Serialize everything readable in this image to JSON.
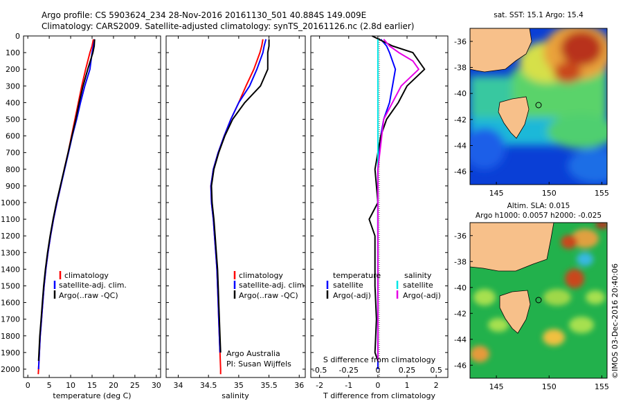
{
  "header": {
    "line1": "Argo profile: CS 5903624_234 28-Nov-2016 20161130_501 40.884S 149.009E",
    "line2": "Climatology: CARS2009. Satellite-adjusted climatology: synTS_20161126.nc (2.8d earlier)"
  },
  "colors": {
    "climatology": "#ff0000",
    "satellite": "#0000ff",
    "argo": "#000000",
    "salinity_satellite": "#00e6e6",
    "salinity_argo": "#e600e6",
    "land": "#f7c08a",
    "sla_base": "#22b14c"
  },
  "side_label": "©IMOS 03-Dec-2016 20:40:06",
  "chart_data": [
    {
      "type": "line",
      "id": "temperature",
      "xlabel": "temperature (deg C)",
      "ylabel": "",
      "xlim": [
        -1,
        31
      ],
      "ylim": [
        2050,
        0
      ],
      "x_ticks": [
        0,
        5,
        10,
        15,
        20,
        25,
        30
      ],
      "x_tick_labels": [
        "0",
        "5",
        "10",
        "15",
        "20",
        "25",
        "30"
      ],
      "y_ticks": [
        0,
        100,
        200,
        300,
        400,
        500,
        600,
        700,
        800,
        900,
        1000,
        1100,
        1200,
        1300,
        1400,
        1500,
        1600,
        1700,
        1800,
        1900,
        2000
      ],
      "y_tick_labels": [
        "0",
        "100",
        "200",
        "300",
        "400",
        "500",
        "600",
        "700",
        "800",
        "900",
        "1000",
        "1100",
        "1200",
        "1300",
        "1400",
        "1500",
        "1600",
        "1700",
        "1800",
        "1900",
        "2000"
      ],
      "legend": [
        "climatology",
        "satellite-adj. clim.",
        "Argo(..raw -QC)"
      ],
      "series": [
        {
          "name": "climatology",
          "color": "#ff0000",
          "points": [
            [
              15.3,
              20
            ],
            [
              15.0,
              60
            ],
            [
              14.5,
              100
            ],
            [
              13.5,
              200
            ],
            [
              12.6,
              300
            ],
            [
              11.8,
              400
            ],
            [
              11.0,
              500
            ],
            [
              10.2,
              600
            ],
            [
              9.4,
              700
            ],
            [
              8.5,
              800
            ],
            [
              7.7,
              900
            ],
            [
              6.8,
              1000
            ],
            [
              6.0,
              1100
            ],
            [
              5.3,
              1200
            ],
            [
              4.7,
              1300
            ],
            [
              4.2,
              1400
            ],
            [
              3.8,
              1500
            ],
            [
              3.5,
              1600
            ],
            [
              3.2,
              1700
            ],
            [
              2.9,
              1800
            ],
            [
              2.7,
              1900
            ],
            [
              2.5,
              2000
            ],
            [
              2.45,
              2030
            ]
          ]
        },
        {
          "name": "satellite-adj. clim.",
          "color": "#0000ff",
          "points": [
            [
              15.6,
              20
            ],
            [
              15.3,
              60
            ],
            [
              15.0,
              100
            ],
            [
              14.5,
              200
            ],
            [
              13.3,
              300
            ],
            [
              12.3,
              400
            ],
            [
              11.4,
              500
            ],
            [
              10.4,
              600
            ],
            [
              9.5,
              700
            ],
            [
              8.6,
              800
            ],
            [
              7.7,
              900
            ],
            [
              6.8,
              1000
            ],
            [
              6.0,
              1100
            ],
            [
              5.3,
              1200
            ],
            [
              4.7,
              1300
            ],
            [
              4.2,
              1400
            ],
            [
              3.8,
              1500
            ],
            [
              3.5,
              1600
            ],
            [
              3.2,
              1700
            ],
            [
              2.9,
              1800
            ],
            [
              2.7,
              1900
            ],
            [
              2.5,
              2000
            ]
          ]
        },
        {
          "name": "Argo(..raw -QC)",
          "color": "#000000",
          "points": [
            [
              15.6,
              20
            ],
            [
              15.5,
              60
            ],
            [
              15.2,
              100
            ],
            [
              14.0,
              200
            ],
            [
              12.9,
              300
            ],
            [
              12.0,
              400
            ],
            [
              11.2,
              500
            ],
            [
              10.3,
              600
            ],
            [
              9.4,
              700
            ],
            [
              8.5,
              800
            ],
            [
              7.6,
              900
            ],
            [
              6.7,
              1000
            ],
            [
              5.9,
              1100
            ],
            [
              5.2,
              1200
            ],
            [
              4.6,
              1300
            ],
            [
              4.1,
              1400
            ],
            [
              3.7,
              1500
            ],
            [
              3.4,
              1600
            ],
            [
              3.1,
              1700
            ],
            [
              2.8,
              1800
            ],
            [
              2.6,
              1900
            ],
            [
              2.5,
              1950
            ]
          ]
        }
      ]
    },
    {
      "type": "line",
      "id": "salinity",
      "xlabel": "salinity",
      "ylabel": "",
      "xlim": [
        33.8,
        36.1
      ],
      "ylim": [
        2050,
        0
      ],
      "x_ticks": [
        34,
        34.5,
        35,
        35.5,
        36
      ],
      "x_tick_labels": [
        "34",
        "34.5",
        "35",
        "35.5",
        "36"
      ],
      "legend": [
        "climatology",
        "satellite-adj. clim.",
        "Argo(..raw -QC)"
      ],
      "annotations": [
        "Argo Australia",
        "PI: Susan Wijffels"
      ],
      "series": [
        {
          "name": "climatology",
          "color": "#ff0000",
          "points": [
            [
              35.4,
              20
            ],
            [
              35.38,
              60
            ],
            [
              35.35,
              100
            ],
            [
              35.25,
              200
            ],
            [
              35.12,
              300
            ],
            [
              35.0,
              400
            ],
            [
              34.87,
              500
            ],
            [
              34.76,
              600
            ],
            [
              34.66,
              700
            ],
            [
              34.58,
              800
            ],
            [
              34.54,
              900
            ],
            [
              34.55,
              1000
            ],
            [
              34.58,
              1100
            ],
            [
              34.6,
              1200
            ],
            [
              34.62,
              1300
            ],
            [
              34.64,
              1400
            ],
            [
              34.65,
              1500
            ],
            [
              34.66,
              1600
            ],
            [
              34.67,
              1700
            ],
            [
              34.68,
              1800
            ],
            [
              34.69,
              1900
            ],
            [
              34.7,
              2000
            ],
            [
              34.7,
              2030
            ]
          ]
        },
        {
          "name": "satellite-adj. clim.",
          "color": "#0000ff",
          "points": [
            [
              35.45,
              20
            ],
            [
              35.42,
              60
            ],
            [
              35.4,
              100
            ],
            [
              35.3,
              200
            ],
            [
              35.18,
              300
            ],
            [
              35.0,
              400
            ],
            [
              34.87,
              500
            ],
            [
              34.76,
              600
            ],
            [
              34.66,
              700
            ],
            [
              34.58,
              800
            ],
            [
              34.54,
              900
            ],
            [
              34.55,
              1000
            ],
            [
              34.58,
              1100
            ],
            [
              34.6,
              1200
            ],
            [
              34.62,
              1300
            ],
            [
              34.64,
              1400
            ],
            [
              34.65,
              1500
            ],
            [
              34.66,
              1600
            ],
            [
              34.67,
              1700
            ],
            [
              34.68,
              1800
            ],
            [
              34.69,
              1900
            ]
          ]
        },
        {
          "name": "Argo(..raw -QC)",
          "color": "#000000",
          "points": [
            [
              35.5,
              20
            ],
            [
              35.5,
              60
            ],
            [
              35.48,
              100
            ],
            [
              35.48,
              200
            ],
            [
              35.36,
              300
            ],
            [
              35.1,
              400
            ],
            [
              34.9,
              500
            ],
            [
              34.77,
              600
            ],
            [
              34.67,
              700
            ],
            [
              34.59,
              800
            ],
            [
              34.55,
              900
            ],
            [
              34.56,
              1000
            ],
            [
              34.59,
              1100
            ],
            [
              34.61,
              1200
            ],
            [
              34.63,
              1300
            ],
            [
              34.65,
              1400
            ],
            [
              34.66,
              1500
            ],
            [
              34.67,
              1600
            ],
            [
              34.68,
              1700
            ],
            [
              34.69,
              1800
            ],
            [
              34.7,
              1900
            ]
          ]
        }
      ]
    },
    {
      "type": "line",
      "id": "differences",
      "xlabel": "T difference from climatology",
      "xlabel_top": "S difference from climatology",
      "xlim": [
        -2.3,
        2.4
      ],
      "ylim": [
        2050,
        0
      ],
      "x_ticks": [
        -2,
        -1,
        0,
        1,
        2
      ],
      "x_tick_labels": [
        "-2",
        "-1",
        "0",
        "1",
        "2"
      ],
      "s_ticks": [
        -0.5,
        -0.25,
        0,
        0.25,
        0.5
      ],
      "s_tick_labels": [
        "-0.5",
        "-0.25",
        "0",
        "0.25",
        "0.5"
      ],
      "legend_left_title": "temperature",
      "legend_left": [
        "satellite",
        "Argo(-adj)"
      ],
      "legend_right_title": "salinity",
      "legend_right": [
        "satellite",
        "Argo(-adj)"
      ],
      "series": [
        {
          "name": "T satellite",
          "color": "#0000ff",
          "points": [
            [
              0.1,
              20
            ],
            [
              0.3,
              60
            ],
            [
              0.4,
              100
            ],
            [
              0.6,
              200
            ],
            [
              0.5,
              300
            ],
            [
              0.4,
              400
            ],
            [
              0.2,
              500
            ],
            [
              0.1,
              600
            ],
            [
              0.05,
              700
            ],
            [
              0.0,
              800
            ],
            [
              0.0,
              900
            ],
            [
              0.0,
              1000
            ],
            [
              0.0,
              1500
            ],
            [
              0.0,
              2000
            ]
          ]
        },
        {
          "name": "T Argo(-adj)",
          "color": "#000000",
          "points": [
            [
              -0.2,
              0
            ],
            [
              0.5,
              60
            ],
            [
              1.2,
              100
            ],
            [
              1.6,
              200
            ],
            [
              1.0,
              300
            ],
            [
              0.7,
              400
            ],
            [
              0.3,
              500
            ],
            [
              0.1,
              600
            ],
            [
              -0.1,
              800
            ],
            [
              0.0,
              1000
            ],
            [
              -0.3,
              1100
            ],
            [
              -0.1,
              1200
            ],
            [
              -0.1,
              1500
            ],
            [
              -0.05,
              1700
            ],
            [
              -0.1,
              1900
            ],
            [
              0.0,
              1950
            ]
          ]
        },
        {
          "name": "S satellite",
          "color": "#00e6e6",
          "points": [
            [
              0.0,
              20
            ],
            [
              0.0,
              100
            ],
            [
              0.0,
              300
            ],
            [
              0.0,
              600
            ],
            [
              0.0,
              900
            ],
            [
              0.0,
              1200
            ],
            [
              0.0,
              1500
            ],
            [
              0.0,
              1950
            ]
          ]
        },
        {
          "name": "S Argo(-adj)",
          "color": "#e600e6",
          "points": [
            [
              0.05,
              20
            ],
            [
              0.1,
              60
            ],
            [
              0.18,
              100
            ],
            [
              0.3,
              150
            ],
            [
              0.35,
              200
            ],
            [
              0.2,
              300
            ],
            [
              0.05,
              500
            ],
            [
              0.0,
              800
            ],
            [
              0.0,
              1000
            ],
            [
              0.0,
              1500
            ],
            [
              0.0,
              1950
            ]
          ]
        }
      ]
    },
    {
      "type": "heatmap",
      "id": "sst_map",
      "title": "sat. SST: 15.1 Argo: 15.4",
      "xlim": [
        142.5,
        155.5
      ],
      "ylim": [
        -47,
        -35
      ],
      "x_ticks": [
        145,
        150,
        155
      ],
      "x_tick_labels": [
        "145",
        "150",
        "155"
      ],
      "y_ticks": [
        -36,
        -38,
        -40,
        -42,
        -44,
        -46
      ],
      "y_tick_labels": [
        "-36",
        "-38",
        "-40",
        "-42",
        "-44",
        "-46"
      ],
      "profile_location": [
        149.009,
        -40.884
      ]
    },
    {
      "type": "heatmap",
      "id": "sla_map",
      "title": "Altim. SLA: 0.015",
      "subtitle": "Argo h1000: 0.0057 h2000: -0.025",
      "xlim": [
        142.5,
        155.5
      ],
      "ylim": [
        -47,
        -35
      ],
      "x_ticks": [
        145,
        150,
        155
      ],
      "x_tick_labels": [
        "145",
        "150",
        "155"
      ],
      "y_ticks": [
        -36,
        -38,
        -40,
        -42,
        -44,
        -46
      ],
      "y_tick_labels": [
        "-36",
        "-38",
        "-40",
        "-42",
        "-44",
        "-46"
      ],
      "profile_location": [
        149.009,
        -40.884
      ]
    }
  ]
}
